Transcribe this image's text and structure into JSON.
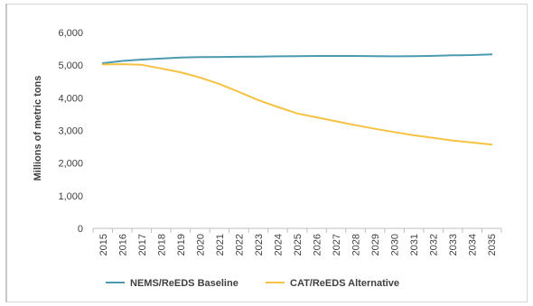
{
  "chart_data": {
    "type": "line",
    "title": "",
    "xlabel": "",
    "ylabel": "Millions of metric tons",
    "x": [
      "2015",
      "2016",
      "2017",
      "2018",
      "2019",
      "2020",
      "2021",
      "2022",
      "2023",
      "2024",
      "2025",
      "2026",
      "2027",
      "2028",
      "2029",
      "2030",
      "2031",
      "2032",
      "2033",
      "2034",
      "2035"
    ],
    "ylim": [
      0,
      6000
    ],
    "yticks": [
      0,
      1000,
      2000,
      3000,
      4000,
      5000,
      6000
    ],
    "ytick_labels": [
      "0",
      "1,000",
      "2,000",
      "3,000",
      "4,000",
      "5,000",
      "6,000"
    ],
    "grid": false,
    "legend_position": "bottom",
    "series": [
      {
        "name": "NEMS/ReEDS Baseline",
        "color": "#4a9bb0",
        "values": [
          5060,
          5130,
          5170,
          5200,
          5230,
          5245,
          5250,
          5255,
          5260,
          5270,
          5275,
          5280,
          5280,
          5280,
          5275,
          5270,
          5275,
          5285,
          5300,
          5310,
          5330
        ]
      },
      {
        "name": "CAT/ReEDS Alternative",
        "color": "#f5c242",
        "values": [
          5020,
          5030,
          5010,
          4900,
          4780,
          4620,
          4420,
          4180,
          3930,
          3720,
          3520,
          3400,
          3280,
          3160,
          3050,
          2950,
          2850,
          2770,
          2690,
          2630,
          2570
        ]
      }
    ]
  }
}
